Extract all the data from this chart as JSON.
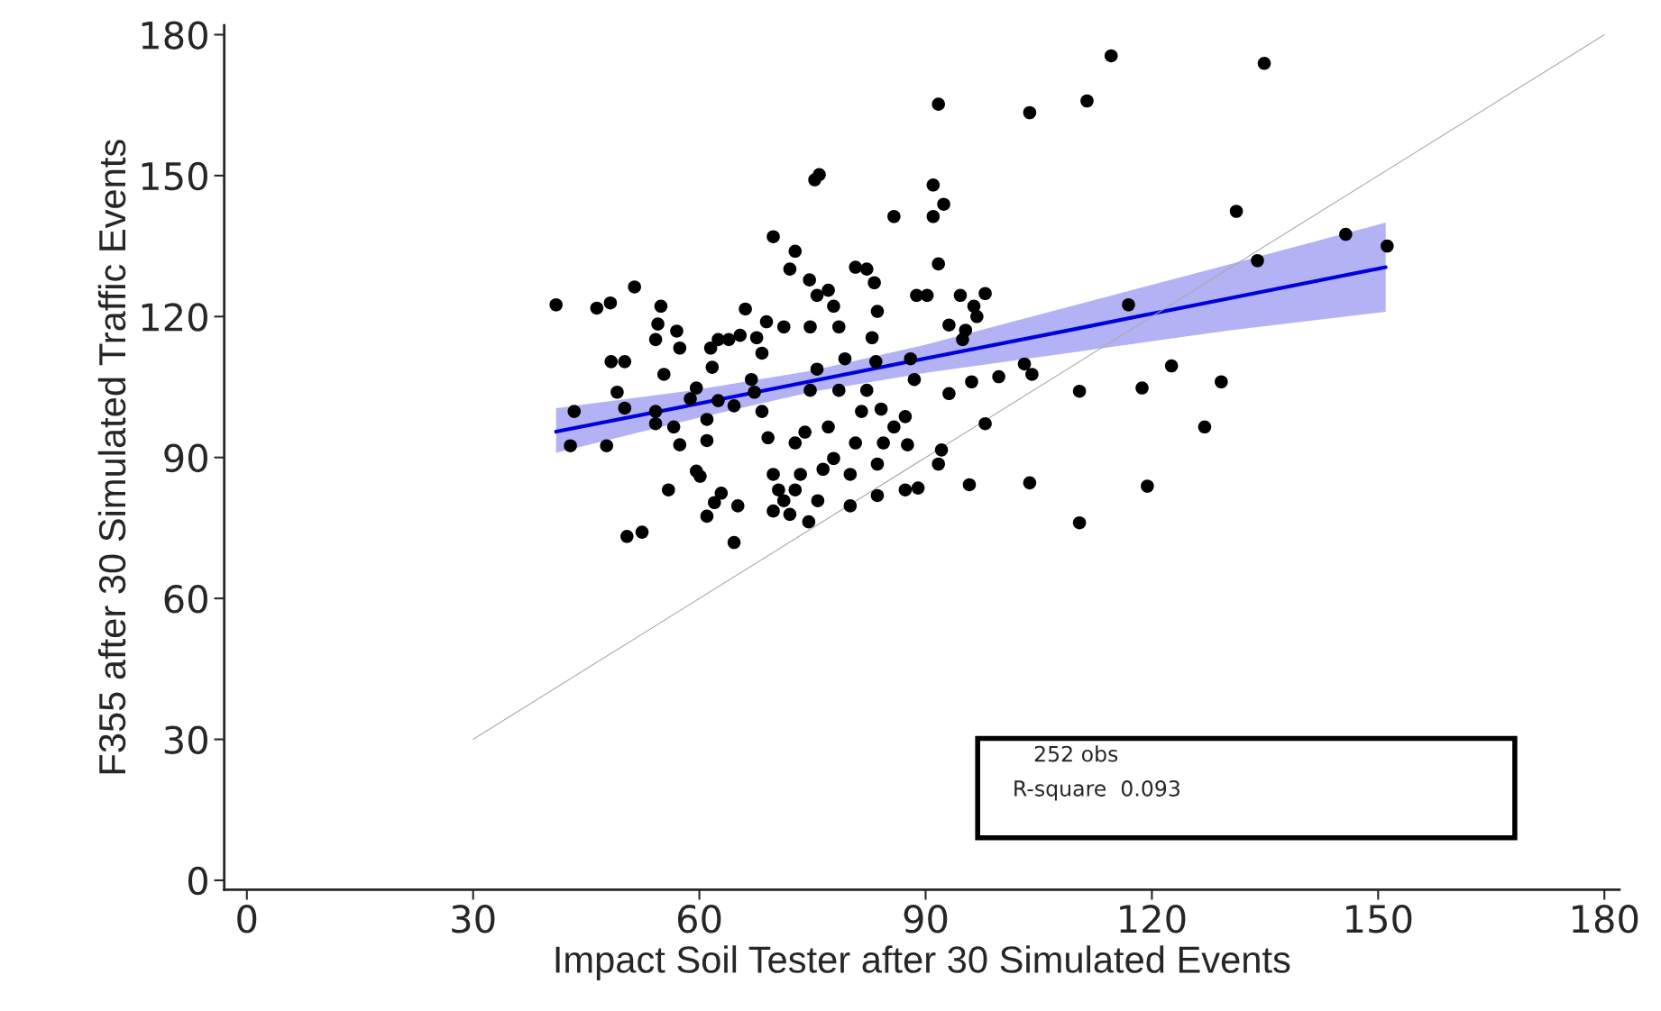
{
  "chart_data": {
    "type": "scatter",
    "xlabel": "Impact Soil Tester after 30 Simulated Events",
    "ylabel": "F355 after 30 Simulated Traffic Events",
    "xlim": [
      -3,
      182
    ],
    "ylim": [
      -2,
      182
    ],
    "xticks": [
      0,
      30,
      60,
      90,
      120,
      150,
      180
    ],
    "yticks": [
      0,
      30,
      60,
      90,
      120,
      150,
      180
    ],
    "grid": false,
    "annotations": [
      "252 obs",
      "R-square  0.093"
    ],
    "series": [
      {
        "color": "#000000",
        "marker": "circle",
        "x": [
          41.0,
          43.4,
          42.9,
          46.4,
          48.2,
          51.4,
          47.7,
          48.3,
          50.1,
          49.1,
          50.1,
          50.4,
          52.4,
          54.9,
          54.5,
          57.0,
          54.2,
          57.4,
          55.3,
          54.2,
          54.2,
          56.6,
          55.9,
          57.4,
          59.6,
          60.1,
          61.0,
          62.0,
          62.9,
          64.6,
          65.1,
          58.8,
          59.6,
          61.0,
          61.0,
          61.7,
          61.5,
          62.5,
          63.9,
          65.4,
          66.1,
          67.6,
          68.9,
          69.8,
          72.7,
          72.0,
          71.2,
          68.3,
          66.9,
          64.6,
          62.5,
          67.3,
          68.3,
          69.1,
          69.8,
          70.5,
          71.2,
          69.8,
          72.0,
          72.7,
          73.4,
          72.7,
          74.5,
          75.7,
          74.0,
          74.7,
          75.6,
          74.7,
          75.6,
          74.6,
          75.9,
          75.3,
          77.1,
          77.8,
          78.5,
          79.3,
          78.5,
          77.1,
          76.4,
          77.8,
          80.0,
          80.0,
          80.7,
          81.5,
          80.7,
          82.2,
          83.2,
          83.6,
          82.9,
          83.4,
          82.2,
          84.1,
          83.6,
          83.6,
          84.4,
          85.8,
          85.8,
          87.3,
          87.3,
          88.0,
          88.5,
          89.0,
          87.6,
          88.8,
          90.2,
          91.0,
          91.0,
          91.7,
          92.4,
          91.7,
          91.7,
          92.1,
          93.1,
          93.1,
          94.6,
          94.9,
          95.3,
          96.4,
          96.8,
          97.9,
          96.1,
          95.8,
          97.9,
          99.7,
          103.1,
          103.8,
          104.1,
          103.8,
          110.4,
          111.4,
          110.4,
          114.6,
          116.9,
          118.7,
          119.4,
          122.6,
          127.0,
          129.2,
          131.2,
          134.0,
          134.9,
          145.7,
          151.2
        ],
        "values": [
          122.5,
          99.8,
          92.5,
          121.8,
          122.9,
          126.3,
          92.5,
          110.4,
          110.4,
          103.9,
          100.5,
          73.2,
          74.1,
          122.2,
          118.4,
          116.9,
          115.1,
          113.3,
          107.7,
          99.8,
          97.2,
          96.5,
          83.1,
          92.7,
          87.1,
          86.0,
          77.5,
          80.4,
          82.4,
          71.9,
          79.7,
          102.5,
          104.8,
          98.1,
          93.6,
          109.2,
          113.3,
          115.1,
          115.1,
          116.0,
          121.6,
          115.5,
          118.9,
          137.0,
          133.9,
          130.1,
          117.8,
          112.2,
          106.6,
          101.0,
          102.1,
          103.9,
          99.8,
          94.2,
          86.4,
          83.1,
          80.8,
          78.6,
          77.9,
          83.1,
          86.4,
          93.1,
          76.3,
          80.8,
          95.4,
          104.3,
          108.8,
          117.8,
          124.5,
          127.8,
          150.2,
          149.1,
          125.6,
          122.2,
          117.8,
          111.0,
          104.3,
          96.5,
          87.5,
          89.8,
          79.7,
          86.4,
          93.1,
          99.8,
          130.5,
          130.1,
          127.2,
          121.1,
          115.5,
          110.4,
          104.3,
          100.3,
          88.6,
          81.9,
          93.1,
          141.3,
          96.5,
          98.7,
          83.1,
          111.0,
          106.6,
          83.5,
          92.7,
          124.5,
          124.5,
          141.3,
          148.0,
          165.2,
          143.9,
          131.2,
          88.6,
          91.6,
          118.2,
          103.6,
          124.5,
          115.1,
          117.1,
          122.2,
          120.0,
          124.9,
          106.1,
          84.2,
          97.2,
          107.2,
          109.9,
          163.4,
          107.7,
          84.6,
          104.1,
          165.9,
          76.1,
          175.5,
          122.5,
          104.8,
          83.9,
          109.5,
          96.5,
          106.1,
          142.4,
          131.9,
          173.9,
          137.5,
          135.0
        ]
      },
      {
        "type": "line",
        "color": "#0000dd",
        "line_style": "solid",
        "marker": "none",
        "x": [
          41,
          60,
          75,
          90,
          110,
          130,
          151
        ],
        "values": [
          95.5,
          101.5,
          106.3,
          111.1,
          117.4,
          123.8,
          130.5
        ],
        "lower": [
          91,
          98.5,
          104,
          108,
          112.5,
          117,
          121
        ],
        "upper": [
          100.5,
          104.5,
          108.5,
          114,
          122.5,
          131,
          140
        ]
      },
      {
        "type": "line",
        "color": "#aaaaaa",
        "line_style": "solid",
        "marker": "none",
        "x": [
          30,
          180
        ],
        "values": [
          30,
          180
        ]
      }
    ]
  }
}
